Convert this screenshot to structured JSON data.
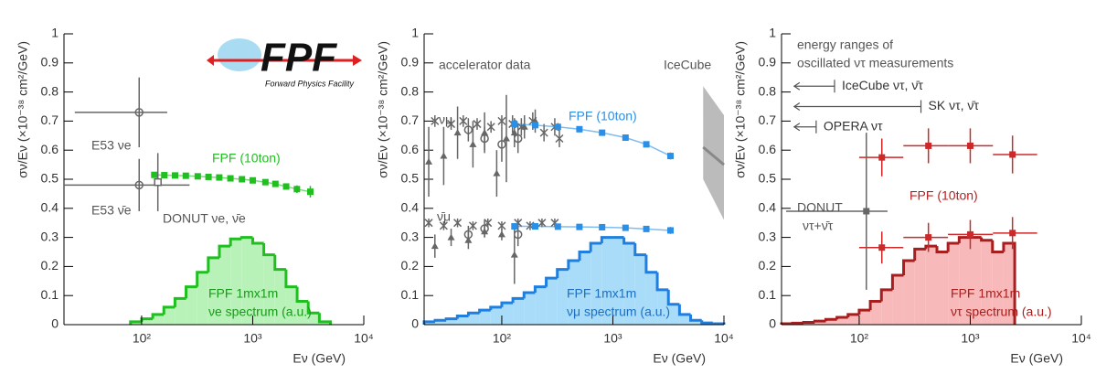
{
  "chart_data": [
    {
      "type": "scatter",
      "xlabel": "Eν (GeV)",
      "ylabel": "σν/Eν (×10⁻³⁸ cm²/GeV)",
      "log_x": true,
      "xlim": [
        20,
        10000
      ],
      "ylim": [
        0,
        1
      ],
      "xticks": [
        {
          "value": 100,
          "label": "10²"
        },
        {
          "value": 1000,
          "label": "10³"
        },
        {
          "value": 10000,
          "label": "10⁴"
        }
      ],
      "yticks": [
        0,
        0.1,
        0.2,
        0.3,
        0.4,
        0.5,
        0.6,
        0.7,
        0.8,
        0.9,
        1
      ],
      "logo_text": "FPF",
      "logo_subtitle": "Forward Physics Facility",
      "histogram": {
        "color": "#1fbf1f",
        "fill": "#b8f2b8",
        "bins": [
          79.4,
          100,
          125.9,
          158.5,
          199.5,
          251.2,
          316.2,
          398.1,
          501.2,
          631,
          794.3,
          1000,
          1258.9,
          1584.9,
          1995.3,
          2511.9,
          3162.3,
          3981.1,
          5011.9
        ],
        "values": [
          0.01,
          0.02,
          0.035,
          0.06,
          0.09,
          0.13,
          0.18,
          0.23,
          0.27,
          0.295,
          0.3,
          0.28,
          0.24,
          0.19,
          0.13,
          0.08,
          0.04,
          0.01
        ]
      },
      "series": [
        {
          "color": "#1fbf1f",
          "marker": "square",
          "connect": true,
          "x": [
            130,
            160,
            200,
            250,
            320,
            400,
            500,
            630,
            800,
            1000,
            1300,
            1600,
            2000,
            2500,
            3300
          ],
          "values": [
            0.515,
            0.514,
            0.513,
            0.512,
            0.51,
            0.508,
            0.506,
            0.503,
            0.5,
            0.496,
            0.49,
            0.484,
            0.475,
            0.466,
            0.457
          ],
          "y_errors": [
            0.006,
            0.005,
            0.005,
            0.005,
            0.005,
            0.005,
            0.005,
            0.005,
            0.005,
            0.006,
            0.007,
            0.008,
            0.01,
            0.013,
            0.02
          ]
        },
        {
          "color": "#666666",
          "marker": "circle-open",
          "x": [
            95
          ],
          "values": [
            0.73
          ],
          "y_errors": [
            0.12
          ],
          "x_low": [
            25
          ],
          "x_high": [
            170
          ]
        },
        {
          "color": "#666666",
          "marker": "circle-open",
          "x": [
            95
          ],
          "values": [
            0.48
          ],
          "y_errors": [
            0.09
          ],
          "x_low": [
            20
          ],
          "x_high": [
            270
          ]
        },
        {
          "color": "#666666",
          "marker": "square-open",
          "x": [
            140
          ],
          "values": [
            0.49
          ],
          "y_errors": [
            0.1
          ]
        }
      ],
      "annotations": [
        "E53 νe",
        "E53 ν̄e",
        "DONUT νe, ν̄e",
        "FPF (10ton)",
        "FPF 1mx1m",
        "νe spectrum (a.u.)"
      ]
    },
    {
      "type": "scatter",
      "xlabel": "Eν (GeV)",
      "ylabel": "σν/Eν (×10⁻³⁸ cm²/GeV)",
      "log_x": true,
      "xlim": [
        20,
        10000
      ],
      "ylim": [
        0,
        1
      ],
      "xticks": [
        {
          "value": 100,
          "label": "10²"
        },
        {
          "value": 1000,
          "label": "10³"
        },
        {
          "value": 10000,
          "label": "10⁴"
        }
      ],
      "yticks": [
        0,
        0.1,
        0.2,
        0.3,
        0.4,
        0.5,
        0.6,
        0.7,
        0.8,
        0.9,
        1
      ],
      "histogram": {
        "color": "#1e7fe0",
        "fill": "#a8dcf8",
        "bins": [
          20,
          25.1,
          31.6,
          39.8,
          50.1,
          63.1,
          79.4,
          100,
          125.9,
          158.5,
          199.5,
          251.2,
          316.2,
          398.1,
          501.2,
          631,
          794.3,
          1000,
          1258.9,
          1584.9,
          1995.3,
          2511.9,
          3162.3,
          3981.1,
          5011.9,
          6309.6,
          7943.3,
          10000
        ],
        "values": [
          0.01,
          0.015,
          0.02,
          0.03,
          0.04,
          0.05,
          0.06,
          0.075,
          0.09,
          0.11,
          0.13,
          0.16,
          0.19,
          0.22,
          0.25,
          0.28,
          0.3,
          0.3,
          0.28,
          0.24,
          0.18,
          0.12,
          0.07,
          0.035,
          0.015,
          0.006,
          0.003
        ]
      },
      "band": {
        "color": "#bbbbbb",
        "line_color": "#888888",
        "x": [
          6500,
          10000
        ],
        "values": [
          0.61,
          0.55
        ],
        "lower": [
          0.5,
          0.36
        ],
        "upper": [
          0.82,
          0.72
        ]
      },
      "series": [
        {
          "color": "#666666",
          "marker": "triangle",
          "x": [
            22,
            30,
            40,
            55,
            70,
            90,
            110,
            130,
            160,
            200
          ],
          "values": [
            0.56,
            0.58,
            0.66,
            0.62,
            0.66,
            0.52,
            0.64,
            0.66,
            0.68,
            0.7
          ],
          "y_errors": [
            0.12,
            0.1,
            0.09,
            0.08,
            0.07,
            0.08,
            0.15,
            0.05,
            0.04,
            0.04
          ]
        },
        {
          "color": "#666666",
          "marker": "cross",
          "x": [
            25,
            35,
            45,
            60,
            80,
            100,
            125,
            150,
            190,
            240,
            300,
            330
          ],
          "values": [
            0.7,
            0.69,
            0.7,
            0.69,
            0.68,
            0.7,
            0.69,
            0.68,
            0.7,
            0.66,
            0.68,
            0.64
          ],
          "y_errors": [
            0.02,
            0.02,
            0.02,
            0.02,
            0.02,
            0.02,
            0.03,
            0.03,
            0.03,
            0.03,
            0.03,
            0.03
          ]
        },
        {
          "color": "#666666",
          "marker": "circle-open",
          "x": [
            50,
            70,
            100,
            140
          ],
          "values": [
            0.67,
            0.64,
            0.62,
            0.64
          ],
          "y_errors": [
            0.04,
            0.04,
            0.06,
            0.05
          ]
        },
        {
          "color": "#666666",
          "marker": "triangle",
          "x": [
            25,
            35,
            50,
            70,
            100,
            130
          ],
          "values": [
            0.27,
            0.3,
            0.29,
            0.32,
            0.31,
            0.24
          ],
          "y_errors": [
            0.04,
            0.03,
            0.03,
            0.02,
            0.02,
            0.1
          ]
        },
        {
          "color": "#666666",
          "marker": "cross",
          "x": [
            22,
            30,
            40,
            55,
            75,
            100,
            140,
            180,
            230,
            300
          ],
          "values": [
            0.35,
            0.34,
            0.35,
            0.34,
            0.35,
            0.34,
            0.35,
            0.34,
            0.35,
            0.35
          ],
          "y_errors": [
            0.015,
            0.015,
            0.015,
            0.015,
            0.015,
            0.015,
            0.015,
            0.015,
            0.015,
            0.015
          ]
        },
        {
          "color": "#666666",
          "marker": "circle-open",
          "x": [
            50,
            70,
            140
          ],
          "values": [
            0.31,
            0.33,
            0.31
          ],
          "y_errors": [
            0.03,
            0.03,
            0.04
          ]
        },
        {
          "color": "#2a8fe6",
          "marker": "square",
          "connect": true,
          "x": [
            130,
            200,
            320,
            500,
            800,
            1300,
            2000,
            3300
          ],
          "values": [
            0.69,
            0.686,
            0.68,
            0.672,
            0.66,
            0.643,
            0.62,
            0.58
          ],
          "y_errors": [
            0.005,
            0.004,
            0.004,
            0.004,
            0.005,
            0.006,
            0.008,
            0.012
          ]
        },
        {
          "color": "#2a8fe6",
          "marker": "square",
          "connect": true,
          "x": [
            130,
            200,
            320,
            500,
            800,
            1300,
            2000,
            3300
          ],
          "values": [
            0.338,
            0.338,
            0.337,
            0.336,
            0.335,
            0.333,
            0.329,
            0.324
          ],
          "y_errors": [
            0.004,
            0.003,
            0.003,
            0.003,
            0.004,
            0.005,
            0.007,
            0.012
          ]
        }
      ],
      "annotations": [
        "accelerator data",
        "IceCube",
        "νμ",
        "ν̄μ",
        "FPF (10ton)",
        "FPF 1mx1m",
        "νμ spectrum (a.u.)"
      ]
    },
    {
      "type": "scatter",
      "xlabel": "Eν (GeV)",
      "ylabel": "σν/Eν (×10⁻³⁸ cm²/GeV)",
      "log_x": true,
      "xlim": [
        20,
        10000
      ],
      "ylim": [
        0,
        1
      ],
      "xticks": [
        {
          "value": 100,
          "label": "10²"
        },
        {
          "value": 1000,
          "label": "10³"
        },
        {
          "value": 10000,
          "label": "10⁴"
        }
      ],
      "yticks": [
        0,
        0.1,
        0.2,
        0.3,
        0.4,
        0.5,
        0.6,
        0.7,
        0.8,
        0.9,
        1
      ],
      "histogram": {
        "color": "#a81e1e",
        "fill": "#f7b9b9",
        "bins": [
          20,
          25.1,
          31.6,
          39.8,
          50.1,
          63.1,
          79.4,
          100,
          125.9,
          158.5,
          199.5,
          251.2,
          316.2,
          398.1,
          501.2,
          631,
          794.3,
          1000,
          1258.9,
          1584.9,
          1995.3,
          2511.9
        ],
        "values": [
          0.003,
          0.005,
          0.008,
          0.012,
          0.018,
          0.025,
          0.035,
          0.05,
          0.08,
          0.12,
          0.17,
          0.22,
          0.26,
          0.27,
          0.25,
          0.28,
          0.3,
          0.3,
          0.29,
          0.25,
          0.28
        ]
      },
      "ranges": [
        {
          "label": "IceCube ντ, ν̄τ",
          "low": 26,
          "high": 60
        },
        {
          "label": "SK ντ, ν̄τ",
          "low": 26,
          "high": 360
        },
        {
          "label": "OPERA ντ",
          "low": 26,
          "high": 41
        }
      ],
      "series": [
        {
          "color": "#cc2a2a",
          "marker": "square",
          "x": [
            160,
            420,
            1000,
            2400
          ],
          "values": [
            0.575,
            0.615,
            0.615,
            0.585
          ],
          "y_errors": [
            0.065,
            0.06,
            0.06,
            0.065
          ],
          "x_low": [
            100,
            250,
            630,
            1600
          ],
          "x_high": [
            250,
            630,
            1600,
            4000
          ]
        },
        {
          "color": "#cc2a2a",
          "marker": "square",
          "x": [
            160,
            420,
            1000,
            2400
          ],
          "values": [
            0.265,
            0.3,
            0.31,
            0.315
          ],
          "y_errors": [
            0.055,
            0.05,
            0.05,
            0.055
          ],
          "x_low": [
            100,
            250,
            630,
            1600
          ],
          "x_high": [
            250,
            630,
            1600,
            4000
          ]
        },
        {
          "color": "#666666",
          "marker": "square",
          "x": [
            116
          ],
          "values": [
            0.39
          ],
          "y_errors": [
            0.27
          ],
          "x_low": [
            22
          ],
          "x_high": [
            180
          ]
        }
      ],
      "annotations": [
        "energy ranges of",
        "oscillated ντ measurements",
        "DONUT",
        "ντ+ν̄τ",
        "FPF (10ton)",
        "FPF 1mx1m",
        "ντ spectrum (a.u.)"
      ]
    }
  ]
}
